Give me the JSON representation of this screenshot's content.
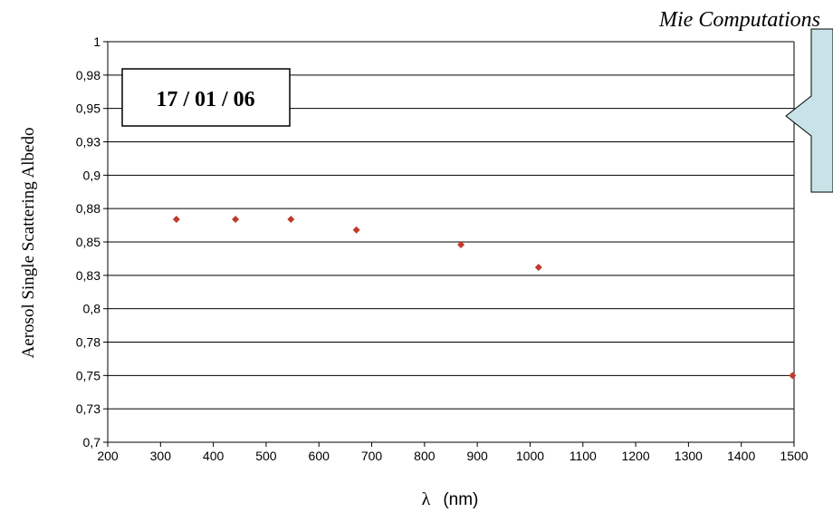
{
  "chart_data": {
    "type": "scatter",
    "title": "Mie Computations",
    "xlabel": "λ",
    "xunit": "(nm)",
    "ylabel": "Aerosol Single Scattering Albedo",
    "annotation": "17 / 01 / 06",
    "xlim": [
      200,
      1500
    ],
    "ylim": [
      0.7,
      1.0
    ],
    "x_ticks": [
      200,
      300,
      400,
      500,
      600,
      700,
      800,
      900,
      1000,
      1100,
      1200,
      1300,
      1400,
      1500
    ],
    "x_tick_labels": [
      "200",
      "300",
      "400",
      "500",
      "600",
      "700",
      "800",
      "900",
      "1000",
      "1100",
      "1200",
      "1300",
      "1400",
      "1500"
    ],
    "y_ticks": [
      0.7,
      0.725,
      0.75,
      0.775,
      0.8,
      0.825,
      0.85,
      0.875,
      0.9,
      0.925,
      0.95,
      0.975,
      1.0
    ],
    "y_tick_labels": [
      "0,7",
      "0,73",
      "0,75",
      "0,78",
      "0,8",
      "0,83",
      "0,85",
      "0,88",
      "0,9",
      "0,93",
      "0,95",
      "0,98",
      "1"
    ],
    "grid": true,
    "marker_color": "#c0392b",
    "points": [
      {
        "x": 330,
        "y": 0.867
      },
      {
        "x": 442,
        "y": 0.867
      },
      {
        "x": 547,
        "y": 0.867
      },
      {
        "x": 671,
        "y": 0.859
      },
      {
        "x": 869,
        "y": 0.848
      },
      {
        "x": 1016,
        "y": 0.831
      },
      {
        "x": 1497,
        "y": 0.75
      }
    ]
  }
}
